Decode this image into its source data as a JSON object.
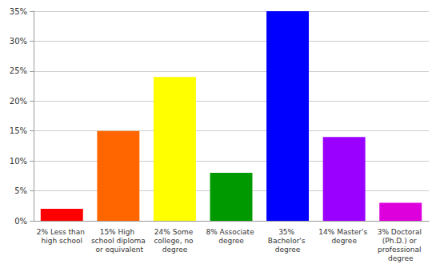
{
  "chart_data": {
    "type": "bar",
    "categories": [
      "2% Less than high school",
      "15% High school diploma or equivalent",
      "24% Some college, no degree",
      "8% Associate degree",
      "35% Bachelor's degree",
      "14% Master's degree",
      "3% Doctoral (Ph.D.) or professional degree"
    ],
    "values": [
      2,
      15,
      24,
      8,
      35,
      14,
      3
    ],
    "colors": [
      "#ff0000",
      "#ff6600",
      "#ffff00",
      "#009900",
      "#0000ff",
      "#9900ff",
      "#dd00dd"
    ],
    "ylim": [
      0,
      35
    ],
    "yticks": [
      {
        "value": 0,
        "label": "0%"
      },
      {
        "value": 5,
        "label": "5%"
      },
      {
        "value": 10,
        "label": "10%"
      },
      {
        "value": 15,
        "label": "15%"
      },
      {
        "value": 20,
        "label": "20%"
      },
      {
        "value": 25,
        "label": "25%"
      },
      {
        "value": 30,
        "label": "30%"
      },
      {
        "value": 35,
        "label": "35%"
      }
    ],
    "grid": true
  }
}
